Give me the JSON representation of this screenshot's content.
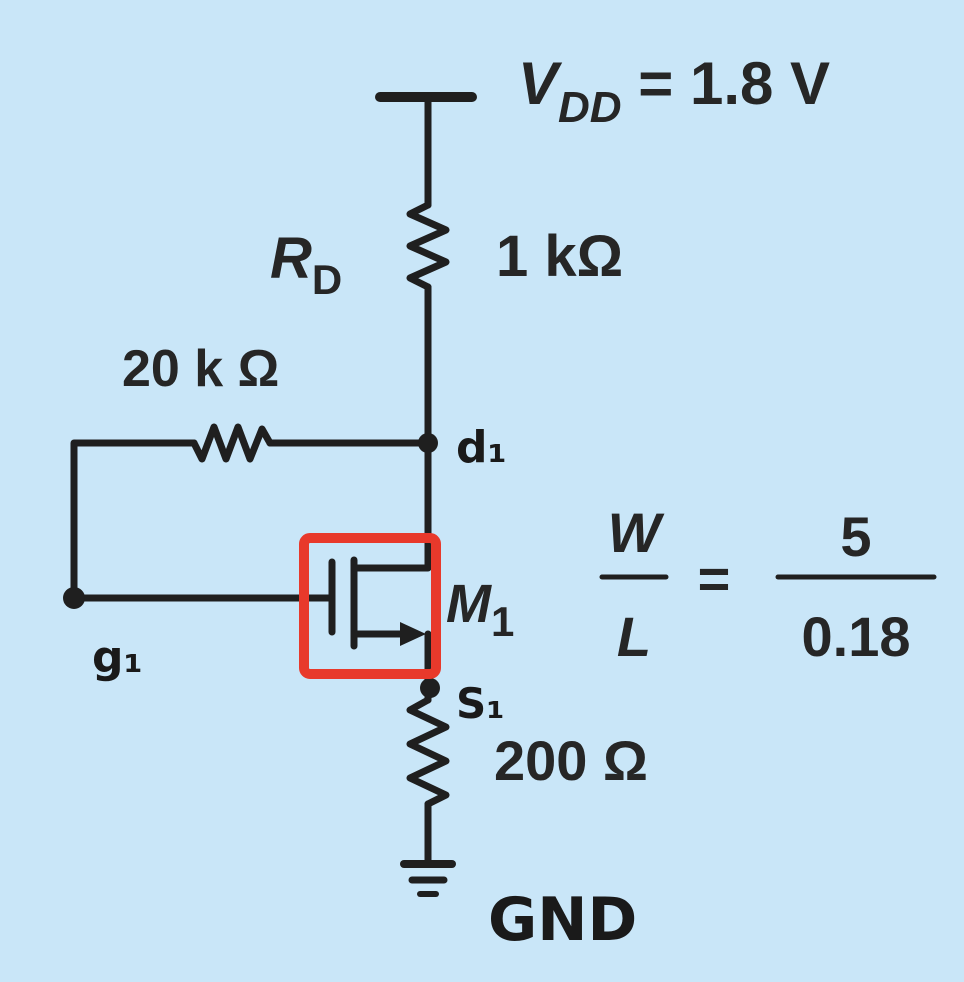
{
  "circuit": {
    "supply": {
      "symbol": "V",
      "subscript": "DD",
      "value": " = 1.8 V"
    },
    "rd": {
      "symbol": "R",
      "subscript": "D",
      "value": "1 kΩ"
    },
    "feedback_resistor": {
      "value": "20 k Ω"
    },
    "source_resistor": {
      "value": "200 Ω"
    },
    "transistor": {
      "symbol": "M",
      "subscript": "1"
    },
    "nodes": {
      "drain": "d₁",
      "gate": "g₁",
      "source": "S₁",
      "ground": "GND"
    },
    "ratio": {
      "numerator_sym": "W",
      "denominator_sym": "L",
      "equals": "=",
      "numerator_val": "5",
      "denominator_val": "0.18"
    }
  },
  "colors": {
    "background": "#c9e6f8",
    "wire": "#1f1f1f",
    "highlight": "#e8392b"
  }
}
